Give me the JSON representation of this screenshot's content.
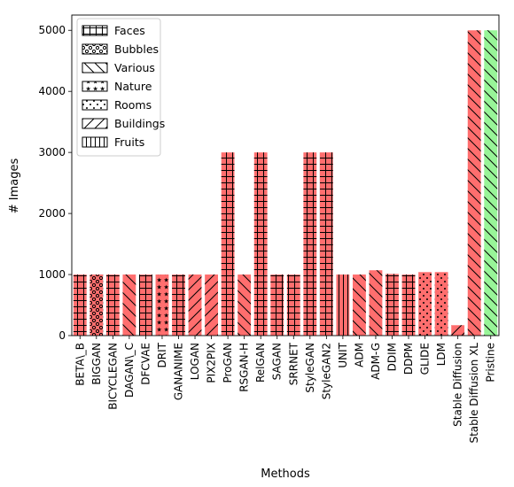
{
  "chart_data": {
    "type": "bar",
    "title": "",
    "xlabel": "Methods",
    "ylabel": "# Images",
    "ylim": [
      0,
      5250
    ],
    "yticks": [
      0,
      1000,
      2000,
      3000,
      4000,
      5000
    ],
    "grid": false,
    "legend_position": "top-left",
    "colors": {
      "fake": "#ff6e6e",
      "real": "#98f598",
      "edge": "#000000"
    },
    "legend": [
      {
        "name": "Faces",
        "pattern": "grid"
      },
      {
        "name": "Bubbles",
        "pattern": "dots"
      },
      {
        "name": "Various",
        "pattern": "backslash"
      },
      {
        "name": "Nature",
        "pattern": "stars"
      },
      {
        "name": "Rooms",
        "pattern": "dots-small"
      },
      {
        "name": "Buildings",
        "pattern": "slash"
      },
      {
        "name": "Fruits",
        "pattern": "vlines"
      }
    ],
    "categories": [
      "BETA\\_B",
      "BIGGAN",
      "BICYCLEGAN",
      "DAGAN\\_C",
      "DFCVAE",
      "DRIT",
      "GANANIME",
      "LOGAN",
      "PIX2PIX",
      "ProGAN",
      "RSGAN-H",
      "RelGAN",
      "SAGAN",
      "SRRNET",
      "StyleGAN",
      "StyleGAN2",
      "UNIT",
      "ADM",
      "ADM-G",
      "DDIM",
      "DDPM",
      "GLIDE",
      "LDM",
      "Stable Diffusion",
      "Stable Diffusion XL",
      "Pristine"
    ],
    "values": [
      1000,
      1000,
      1000,
      1000,
      1000,
      1000,
      1000,
      1000,
      1000,
      3000,
      1000,
      3000,
      1000,
      1000,
      3000,
      3000,
      1000,
      1000,
      1070,
      1010,
      1000,
      1040,
      1040,
      170,
      5000,
      5000
    ],
    "patterns": [
      "grid",
      "dots",
      "grid",
      "backslash",
      "grid",
      "stars",
      "grid",
      "slash",
      "slash",
      "grid",
      "backslash",
      "grid",
      "grid",
      "grid",
      "grid",
      "grid",
      "vlines",
      "backslash",
      "backslash",
      "grid",
      "grid",
      "dots-small",
      "dots-small",
      "slash",
      "backslash",
      "backslash"
    ],
    "kinds": [
      "fake",
      "fake",
      "fake",
      "fake",
      "fake",
      "fake",
      "fake",
      "fake",
      "fake",
      "fake",
      "fake",
      "fake",
      "fake",
      "fake",
      "fake",
      "fake",
      "fake",
      "fake",
      "fake",
      "fake",
      "fake",
      "fake",
      "fake",
      "fake",
      "fake",
      "real"
    ]
  }
}
